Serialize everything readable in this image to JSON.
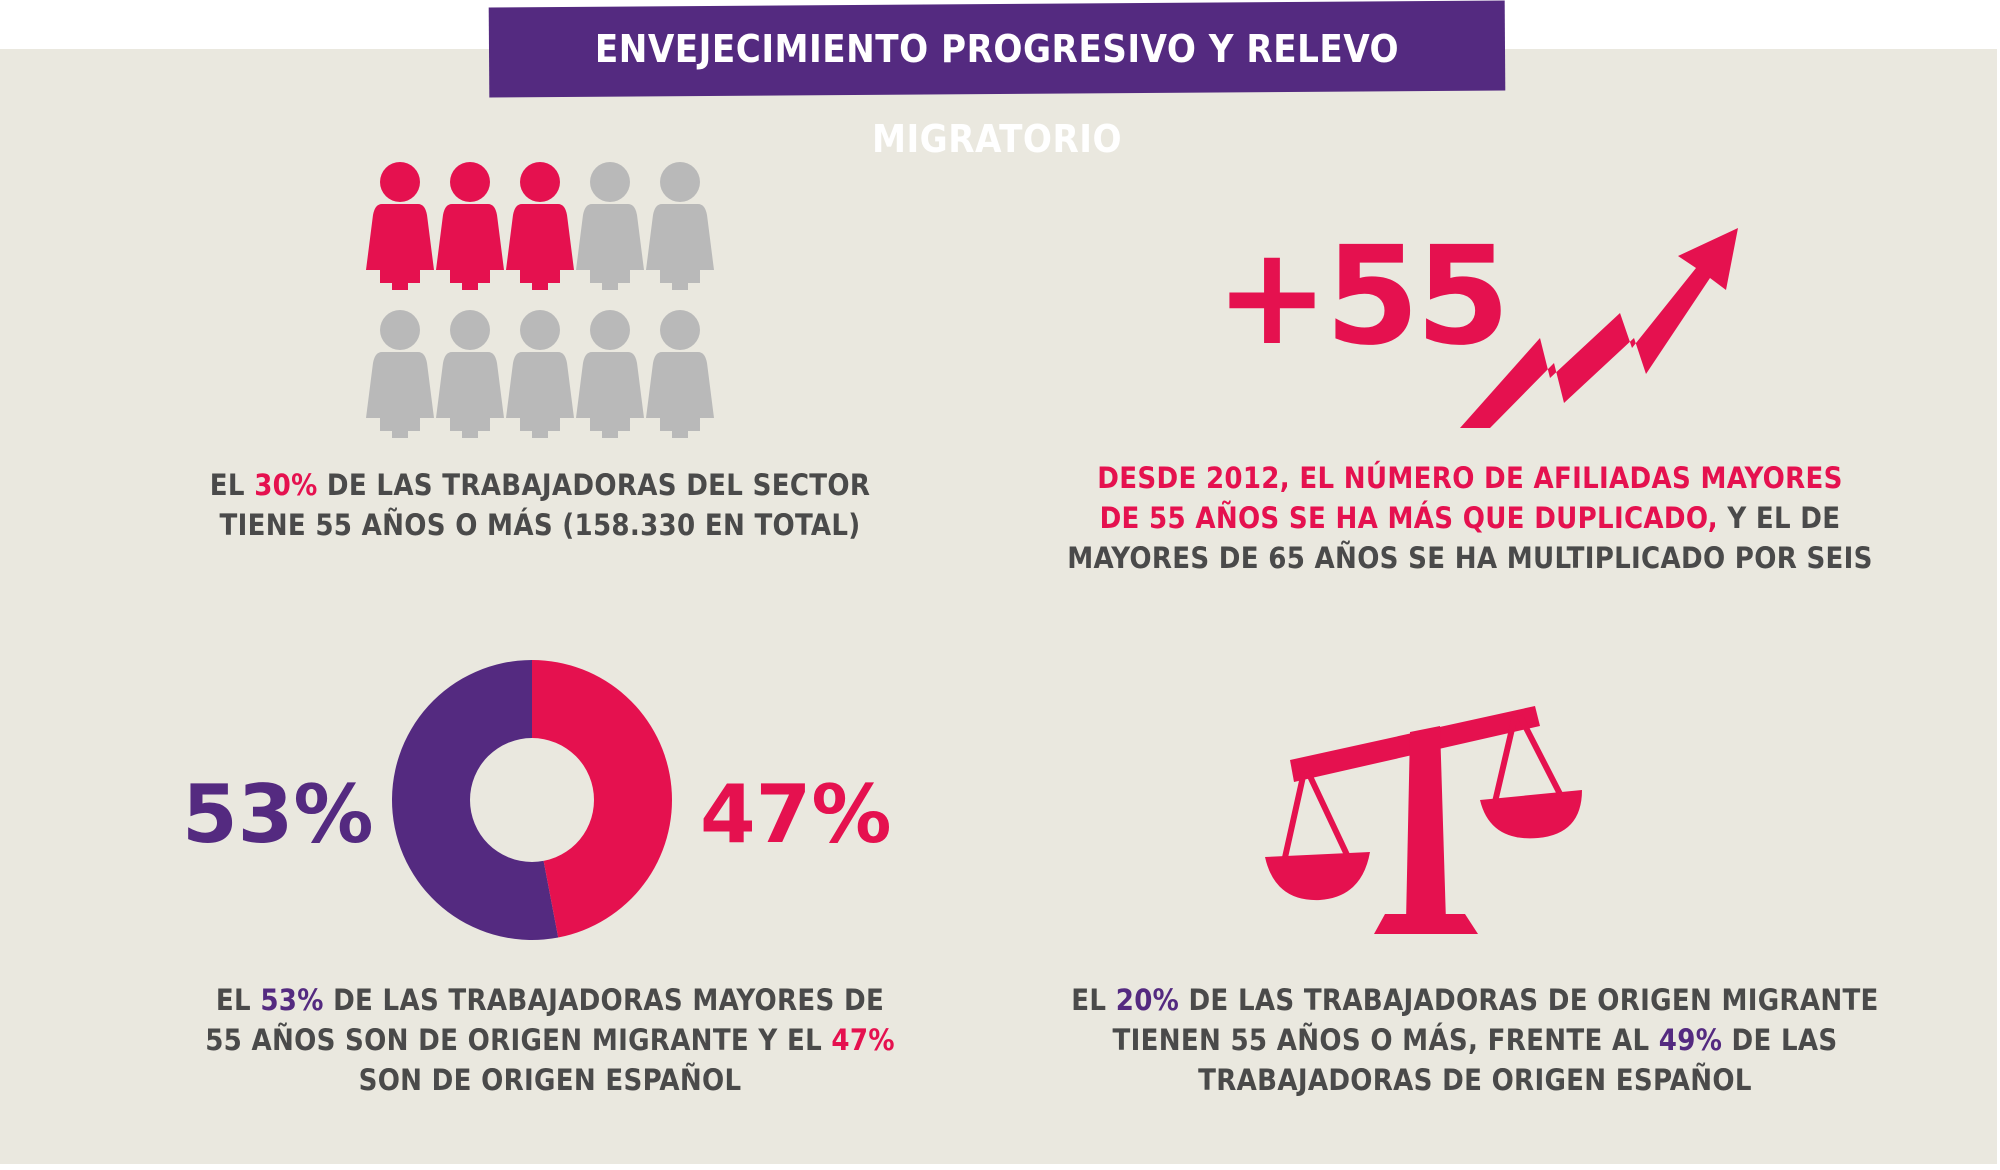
{
  "title": "ENVEJECIMIENTO PROGRESIVO Y RELEVO MIGRATORIO",
  "colors": {
    "accent_pink": "#e5114f",
    "accent_purple": "#542a80",
    "inactive_gray": "#b9b9b9",
    "panel_bg": "#eae8df"
  },
  "block1": {
    "icon": "person-icon",
    "highlighted_count": 3,
    "total_count": 10,
    "caption": {
      "l1_a": "EL ",
      "l1_b": "30%",
      "l1_c": " DE LAS TRABAJADORAS DEL SECTOR",
      "l2": "TIENE 55 AÑOS O MÁS (158.330 EN TOTAL)"
    }
  },
  "block2": {
    "big_number": "+55",
    "icon": "trend-up-arrow-icon",
    "caption": {
      "l1": "DESDE 2012, EL NÚMERO DE AFILIADAS MAYORES",
      "l2_a": "DE 55 AÑOS SE HA MÁS QUE DUPLICADO,",
      "l2_b": " Y EL DE",
      "l3": "MAYORES DE 65 AÑOS SE HA MULTIPLICADO POR SEIS"
    }
  },
  "block3": {
    "left_label": "53%",
    "right_label": "47%",
    "chart_data": {
      "type": "pie",
      "categories": [
        "origen migrante",
        "origen español"
      ],
      "values": [
        53,
        47
      ]
    },
    "caption": {
      "l1_a": "EL ",
      "l1_b": "53%",
      "l1_c": " DE LAS TRABAJADORAS MAYORES DE",
      "l2_a": "55 AÑOS SON DE ORIGEN MIGRANTE Y EL ",
      "l2_b": "47%",
      "l3": "SON DE ORIGEN ESPAÑOL"
    }
  },
  "block4": {
    "icon": "balance-scale-icon",
    "caption": {
      "l1_a": "EL ",
      "l1_b": "20%",
      "l1_c": " DE LAS TRABAJADORAS DE ORIGEN MIGRANTE",
      "l2_a": "TIENEN 55 AÑOS O MÁS, FRENTE AL ",
      "l2_b": "49%",
      "l2_c": " DE LAS",
      "l3": "TRABAJADORAS DE ORIGEN ESPAÑOL"
    }
  }
}
